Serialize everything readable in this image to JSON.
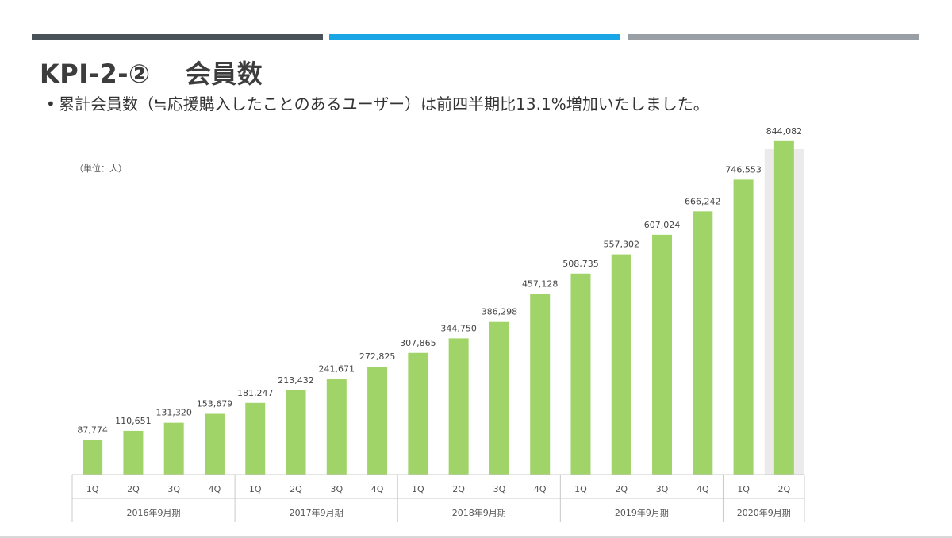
{
  "slide": {
    "title": "KPI-2-②　 会員数",
    "bullet_marker": "•",
    "bullet_text": "累計会員数（≒応援購入したことのあるユーザー）は前四半期比13.1%増加いたしました。",
    "accent_colors": [
      "#4a5259",
      "#1aa6e4",
      "#9a9fa6"
    ]
  },
  "chart_data": {
    "type": "bar",
    "unit_label": "（単位：人）",
    "categories": [
      "1Q",
      "2Q",
      "3Q",
      "4Q",
      "1Q",
      "2Q",
      "3Q",
      "4Q",
      "1Q",
      "2Q",
      "3Q",
      "4Q",
      "1Q",
      "2Q",
      "3Q",
      "4Q",
      "1Q",
      "2Q"
    ],
    "groups": [
      {
        "label": "2016年9月期",
        "count": 4
      },
      {
        "label": "2017年9月期",
        "count": 4
      },
      {
        "label": "2018年9月期",
        "count": 4
      },
      {
        "label": "2019年9月期",
        "count": 4
      },
      {
        "label": "2020年9月期",
        "count": 2
      }
    ],
    "values": [
      87774,
      110651,
      131320,
      153679,
      181247,
      213432,
      241671,
      272825,
      307865,
      344750,
      386298,
      457128,
      508735,
      557302,
      607024,
      666242,
      746553,
      844082
    ],
    "value_labels": [
      "87,774",
      "110,651",
      "131,320",
      "153,679",
      "181,247",
      "213,432",
      "241,671",
      "272,825",
      "307,865",
      "344,750",
      "386,298",
      "457,128",
      "508,735",
      "557,302",
      "607,024",
      "666,242",
      "746,553",
      "844,082"
    ],
    "highlight_index": 17,
    "bar_color": "#a0d468",
    "highlight_background": "#ebebeb",
    "ylim": [
      0,
      900000
    ],
    "grid": false
  }
}
